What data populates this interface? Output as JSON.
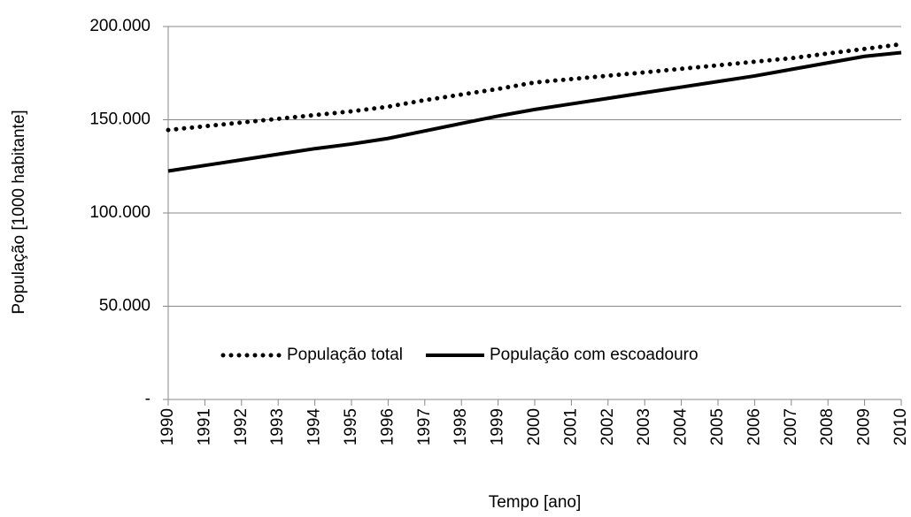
{
  "chart_data": {
    "type": "line",
    "y_label": "População [1000 habitante]",
    "x_label": "Tempo [ano]",
    "x": [
      1990,
      1991,
      1992,
      1993,
      1994,
      1995,
      1996,
      1997,
      1998,
      1999,
      2000,
      2001,
      2002,
      2003,
      2004,
      2005,
      2006,
      2007,
      2008,
      2009,
      2010
    ],
    "series": [
      {
        "name": "População total",
        "color": "#000000",
        "style": "dotted",
        "values": [
          144500,
          146500,
          148500,
          150500,
          152500,
          154500,
          157000,
          160500,
          163500,
          166500,
          170000,
          171800,
          173600,
          175400,
          177300,
          179200,
          181100,
          183000,
          185500,
          188000,
          190500
        ]
      },
      {
        "name": "População com escoadouro",
        "color": "#000000",
        "style": "solid",
        "values": [
          122500,
          125500,
          128500,
          131500,
          134500,
          137000,
          140000,
          144000,
          148000,
          152000,
          155500,
          158500,
          161500,
          164500,
          167500,
          170500,
          173500,
          177000,
          180500,
          184000,
          186000
        ]
      }
    ],
    "xlim": [
      1990,
      2010
    ],
    "xticks": [
      1990,
      1991,
      1992,
      1993,
      1994,
      1995,
      1996,
      1997,
      1998,
      1999,
      2000,
      2001,
      2002,
      2003,
      2004,
      2005,
      2006,
      2007,
      2008,
      2009,
      2010
    ],
    "ylim": [
      0,
      200000
    ],
    "yticks": [
      {
        "value": 0,
        "label": "-"
      },
      {
        "value": 50000,
        "label": "50.000"
      },
      {
        "value": 100000,
        "label": "100.000"
      },
      {
        "value": 150000,
        "label": "150.000"
      },
      {
        "value": 200000,
        "label": "200.000"
      }
    ],
    "grid": true,
    "legend": "bottom"
  }
}
